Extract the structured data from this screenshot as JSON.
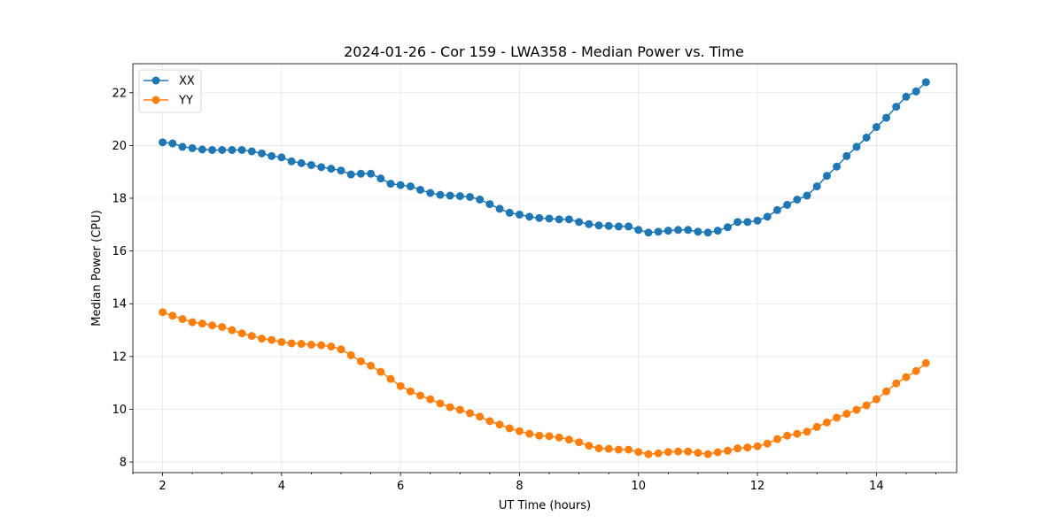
{
  "chart_data": {
    "type": "line",
    "title": "2024-01-26 - Cor 159 - LWA358 - Median Power vs. Time",
    "xlabel": "UT Time (hours)",
    "ylabel": "Median Power (CPU)",
    "xlim": [
      1.5,
      15.35
    ],
    "ylim": [
      7.6,
      23.1
    ],
    "xticks": [
      2,
      4,
      6,
      8,
      10,
      12,
      14
    ],
    "xtick_labels": [
      "2",
      "4",
      "6",
      "8",
      "10",
      "12",
      "14"
    ],
    "yticks": [
      8,
      10,
      12,
      14,
      16,
      18,
      20,
      22
    ],
    "ytick_labels": [
      "8",
      "10",
      "12",
      "14",
      "16",
      "18",
      "20",
      "22"
    ],
    "x_minor_step": 0.5,
    "grid": true,
    "legend": "top-left",
    "x": [
      2.0,
      2.167,
      2.333,
      2.5,
      2.667,
      2.833,
      3.0,
      3.167,
      3.333,
      3.5,
      3.667,
      3.833,
      4.0,
      4.167,
      4.333,
      4.5,
      4.667,
      4.833,
      5.0,
      5.167,
      5.333,
      5.5,
      5.667,
      5.833,
      6.0,
      6.167,
      6.333,
      6.5,
      6.667,
      6.833,
      7.0,
      7.167,
      7.333,
      7.5,
      7.667,
      7.833,
      8.0,
      8.167,
      8.333,
      8.5,
      8.667,
      8.833,
      9.0,
      9.167,
      9.333,
      9.5,
      9.667,
      9.833,
      10.0,
      10.167,
      10.333,
      10.5,
      10.667,
      10.833,
      11.0,
      11.167,
      11.333,
      11.5,
      11.667,
      11.833,
      12.0,
      12.167,
      12.333,
      12.5,
      12.667,
      12.833,
      13.0,
      13.167,
      13.333,
      13.5,
      13.667,
      13.833,
      14.0,
      14.167,
      14.333,
      14.5,
      14.667,
      14.833
    ],
    "series": [
      {
        "name": "XX",
        "color": "#1f77b4",
        "values": [
          20.12,
          20.08,
          19.95,
          19.9,
          19.85,
          19.83,
          19.83,
          19.83,
          19.83,
          19.78,
          19.7,
          19.6,
          19.55,
          19.4,
          19.33,
          19.26,
          19.18,
          19.12,
          19.05,
          18.9,
          18.93,
          18.93,
          18.75,
          18.55,
          18.5,
          18.45,
          18.32,
          18.2,
          18.13,
          18.1,
          18.08,
          18.05,
          17.95,
          17.78,
          17.6,
          17.45,
          17.38,
          17.3,
          17.25,
          17.23,
          17.2,
          17.2,
          17.1,
          17.02,
          16.97,
          16.95,
          16.93,
          16.93,
          16.8,
          16.7,
          16.73,
          16.77,
          16.8,
          16.8,
          16.73,
          16.7,
          16.77,
          16.9,
          17.1,
          17.1,
          17.15,
          17.3,
          17.55,
          17.75,
          17.95,
          18.1,
          18.45,
          18.85,
          19.2,
          19.6,
          19.95,
          20.3,
          20.7,
          21.05,
          21.47,
          21.85,
          22.05,
          22.4
        ]
      },
      {
        "name": "YY",
        "color": "#ff7f0e",
        "values": [
          13.68,
          13.55,
          13.42,
          13.3,
          13.25,
          13.18,
          13.12,
          13.0,
          12.88,
          12.78,
          12.68,
          12.63,
          12.55,
          12.5,
          12.48,
          12.45,
          12.43,
          12.38,
          12.27,
          12.05,
          11.82,
          11.65,
          11.42,
          11.15,
          10.88,
          10.68,
          10.52,
          10.38,
          10.22,
          10.08,
          9.98,
          9.85,
          9.72,
          9.55,
          9.42,
          9.28,
          9.17,
          9.07,
          9.0,
          8.98,
          8.93,
          8.85,
          8.75,
          8.62,
          8.52,
          8.5,
          8.47,
          8.47,
          8.38,
          8.3,
          8.33,
          8.38,
          8.4,
          8.4,
          8.35,
          8.3,
          8.37,
          8.43,
          8.52,
          8.55,
          8.6,
          8.7,
          8.87,
          9.0,
          9.07,
          9.15,
          9.33,
          9.5,
          9.68,
          9.83,
          9.98,
          10.15,
          10.38,
          10.68,
          10.98,
          11.22,
          11.45,
          11.75
        ]
      }
    ]
  }
}
